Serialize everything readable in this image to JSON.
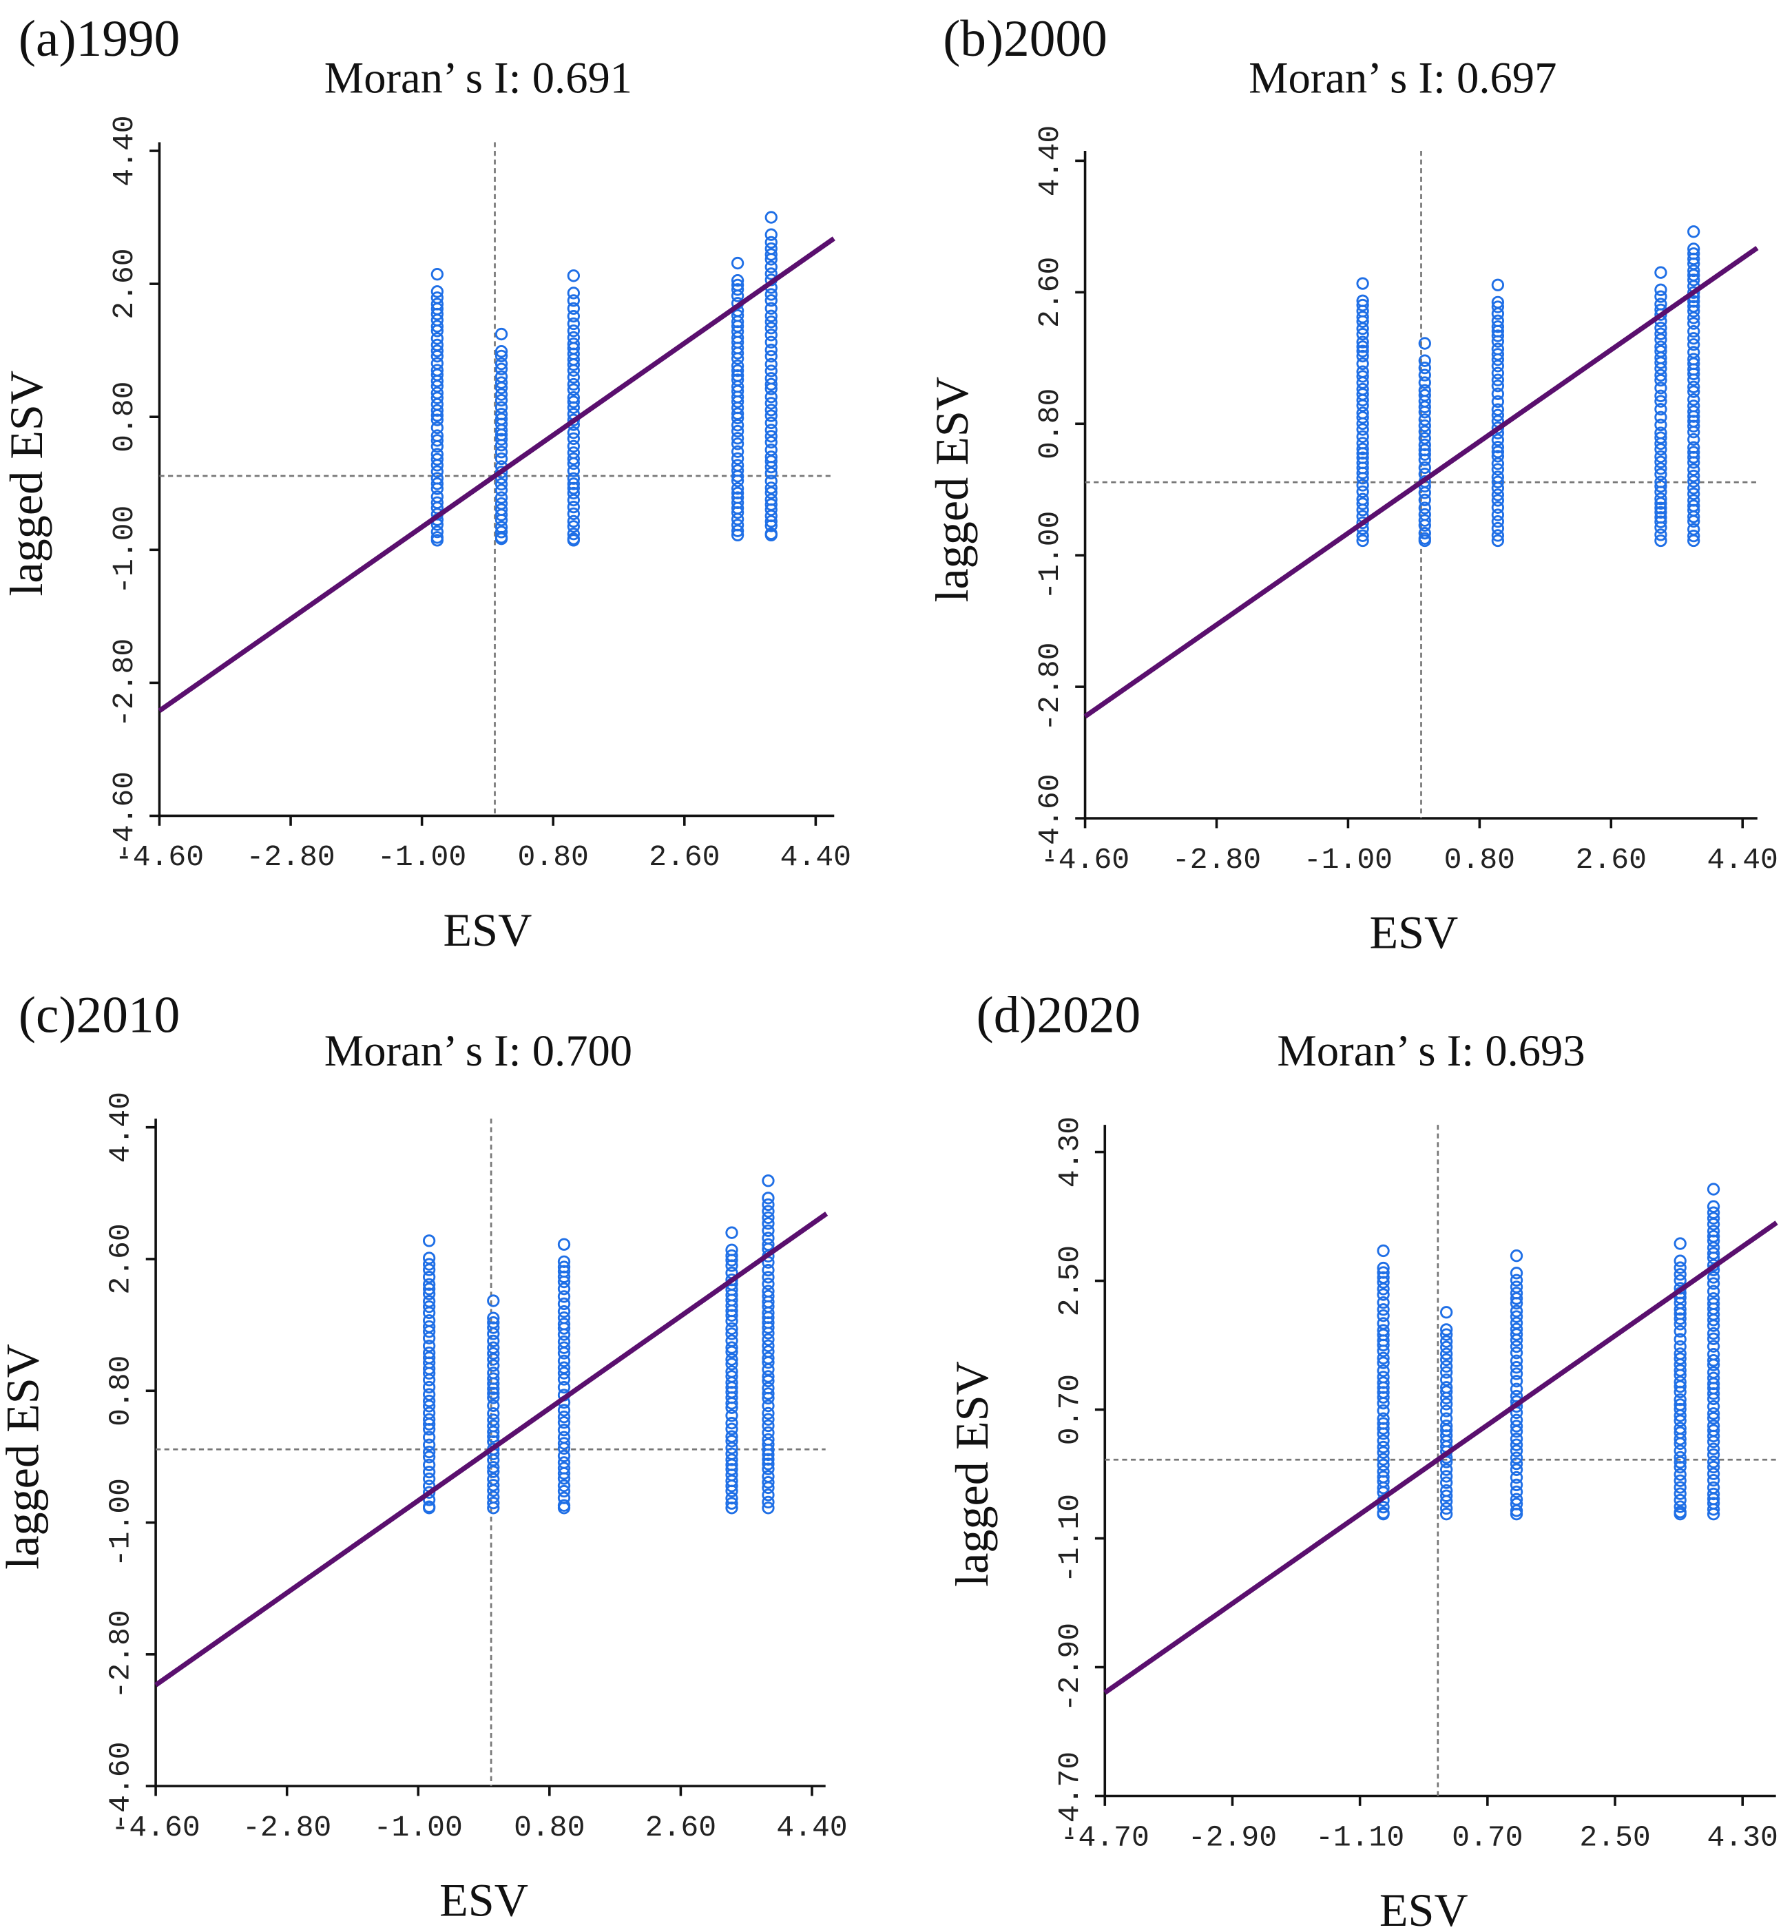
{
  "chart_data": [
    {
      "type": "scatter",
      "panel_label": "(a)1990",
      "title": "Moran’ s I: 0.691",
      "xlabel": "ESV",
      "ylabel": "lagged ESV",
      "xlim": [
        -4.6,
        4.4
      ],
      "ylim": [
        -4.6,
        4.4
      ],
      "xticks": [
        "-4.60",
        "-2.80",
        "-1.00",
        "0.80",
        "2.60",
        "4.40"
      ],
      "yticks": [
        "-4.60",
        "-2.80",
        "-1.00",
        "0.80",
        "2.60",
        "4.40"
      ],
      "tick_values": [
        -4.6,
        -2.8,
        -1.0,
        0.8,
        2.6,
        4.4
      ],
      "mean_lines": {
        "x": 0,
        "y": 0
      },
      "fit_line": {
        "slope": 0.691,
        "x_range": [
          -4.6,
          4.65
        ]
      },
      "columns": [
        {
          "x": -0.79,
          "y_min": -0.87,
          "y_max": 2.73
        },
        {
          "x": 0.09,
          "y_min": -0.85,
          "y_max": 1.92
        },
        {
          "x": 1.08,
          "y_min": -0.87,
          "y_max": 2.71
        },
        {
          "x": 3.33,
          "y_min": -0.8,
          "y_max": 2.88
        },
        {
          "x": 3.79,
          "y_min": -0.8,
          "y_max": 3.5
        }
      ]
    },
    {
      "type": "scatter",
      "panel_label": "(b)2000",
      "title": "Moran’ s I: 0.697",
      "xlabel": "ESV",
      "ylabel": "lagged ESV",
      "xlim": [
        -4.6,
        4.4
      ],
      "ylim": [
        -4.6,
        4.4
      ],
      "xticks": [
        "-4.60",
        "-2.80",
        "-1.00",
        "0.80",
        "2.60",
        "4.40"
      ],
      "yticks": [
        "-4.60",
        "-2.80",
        "-1.00",
        "0.80",
        "2.60",
        "4.40"
      ],
      "tick_values": [
        -4.6,
        -2.8,
        -1.0,
        0.8,
        2.6,
        4.4
      ],
      "mean_lines": {
        "x": 0,
        "y": 0
      },
      "fit_line": {
        "slope": 0.697,
        "x_range": [
          -4.6,
          4.6
        ]
      },
      "columns": [
        {
          "x": -0.8,
          "y_min": -0.8,
          "y_max": 2.72
        },
        {
          "x": 0.05,
          "y_min": -0.8,
          "y_max": 1.9
        },
        {
          "x": 1.05,
          "y_min": -0.8,
          "y_max": 2.7
        },
        {
          "x": 3.28,
          "y_min": -0.8,
          "y_max": 2.87
        },
        {
          "x": 3.73,
          "y_min": -0.8,
          "y_max": 3.43
        }
      ]
    },
    {
      "type": "scatter",
      "panel_label": "(c)2010",
      "title": "Moran’ s I: 0.700",
      "xlabel": "ESV",
      "ylabel": "lagged ESV",
      "xlim": [
        -4.6,
        4.4
      ],
      "ylim": [
        -4.6,
        4.4
      ],
      "xticks": [
        "-4.60",
        "-2.80",
        "-1.00",
        "0.80",
        "2.60",
        "4.40"
      ],
      "yticks": [
        "-4.60",
        "-2.80",
        "-1.00",
        "0.80",
        "2.60",
        "4.40"
      ],
      "tick_values": [
        -4.6,
        -2.8,
        -1.0,
        0.8,
        2.6,
        4.4
      ],
      "mean_lines": {
        "x": 0,
        "y": 0
      },
      "fit_line": {
        "slope": 0.7,
        "x_range": [
          -4.6,
          4.6
        ]
      },
      "columns": [
        {
          "x": -0.85,
          "y_min": -0.8,
          "y_max": 2.85
        },
        {
          "x": 0.03,
          "y_min": -0.8,
          "y_max": 2.03
        },
        {
          "x": 1.0,
          "y_min": -0.8,
          "y_max": 2.8
        },
        {
          "x": 3.3,
          "y_min": -0.8,
          "y_max": 2.96
        },
        {
          "x": 3.8,
          "y_min": -0.8,
          "y_max": 3.67
        }
      ]
    },
    {
      "type": "scatter",
      "panel_label": "(d)2020",
      "title": "Moran’ s I: 0.693",
      "xlabel": "ESV",
      "ylabel": "lagged ESV",
      "xlim": [
        -4.7,
        4.3
      ],
      "ylim": [
        -4.7,
        4.3
      ],
      "xticks": [
        "-4.70",
        "-2.90",
        "-1.10",
        "0.70",
        "2.50",
        "4.30"
      ],
      "yticks": [
        "-4.70",
        "-2.90",
        "-1.10",
        "0.70",
        "2.50",
        "4.30"
      ],
      "tick_values": [
        -4.7,
        -2.9,
        -1.1,
        0.7,
        2.5,
        4.3
      ],
      "mean_lines": {
        "x": 0,
        "y": 0
      },
      "fit_line": {
        "slope": 0.693,
        "x_range": [
          -4.7,
          4.78
        ]
      },
      "columns": [
        {
          "x": -0.77,
          "y_min": -0.76,
          "y_max": 2.92
        },
        {
          "x": 0.12,
          "y_min": -0.76,
          "y_max": 2.06
        },
        {
          "x": 1.11,
          "y_min": -0.76,
          "y_max": 2.85
        },
        {
          "x": 3.42,
          "y_min": -0.76,
          "y_max": 3.02
        },
        {
          "x": 3.89,
          "y_min": -0.76,
          "y_max": 3.78
        }
      ]
    }
  ],
  "colors": {
    "points": "#1f6fe6",
    "fit_line": "#5a0f6e",
    "axis": "#111111",
    "mean_line": "#777777"
  }
}
